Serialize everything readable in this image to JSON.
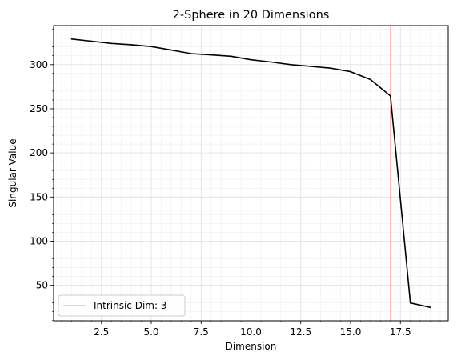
{
  "chart_data": {
    "type": "line",
    "title": "2-Sphere in 20 Dimensions",
    "xlabel": "Dimension",
    "ylabel": "Singular Value",
    "xlim": [
      0.1,
      19.9
    ],
    "ylim": [
      9.8,
      344.2
    ],
    "x_ticks": [
      2.5,
      5.0,
      7.5,
      10.0,
      12.5,
      15.0,
      17.5
    ],
    "x_tick_labels": [
      "2.5",
      "5.0",
      "7.5",
      "10.0",
      "12.5",
      "15.0",
      "17.5"
    ],
    "y_ticks": [
      50,
      100,
      150,
      200,
      250,
      300
    ],
    "y_tick_labels": [
      "50",
      "100",
      "150",
      "200",
      "250",
      "300"
    ],
    "grid": "minor, light",
    "series": [
      {
        "color": "#000000",
        "x": [
          1,
          2,
          3,
          4,
          5,
          6,
          7,
          8,
          9,
          10,
          11,
          12,
          13,
          14,
          15,
          16,
          17,
          18,
          19
        ],
        "values": [
          329,
          326.5,
          324,
          322.5,
          320.5,
          316.5,
          312.5,
          311,
          309.5,
          305.5,
          303,
          300,
          298,
          296,
          292,
          283,
          264.5,
          30,
          25
        ]
      }
    ],
    "vline": {
      "x": 17,
      "color": "#ffb3b3",
      "label": "Intrinsic Dim: 3"
    },
    "legend": {
      "position": "lower-left",
      "entries": [
        "Intrinsic Dim: 3"
      ]
    }
  }
}
